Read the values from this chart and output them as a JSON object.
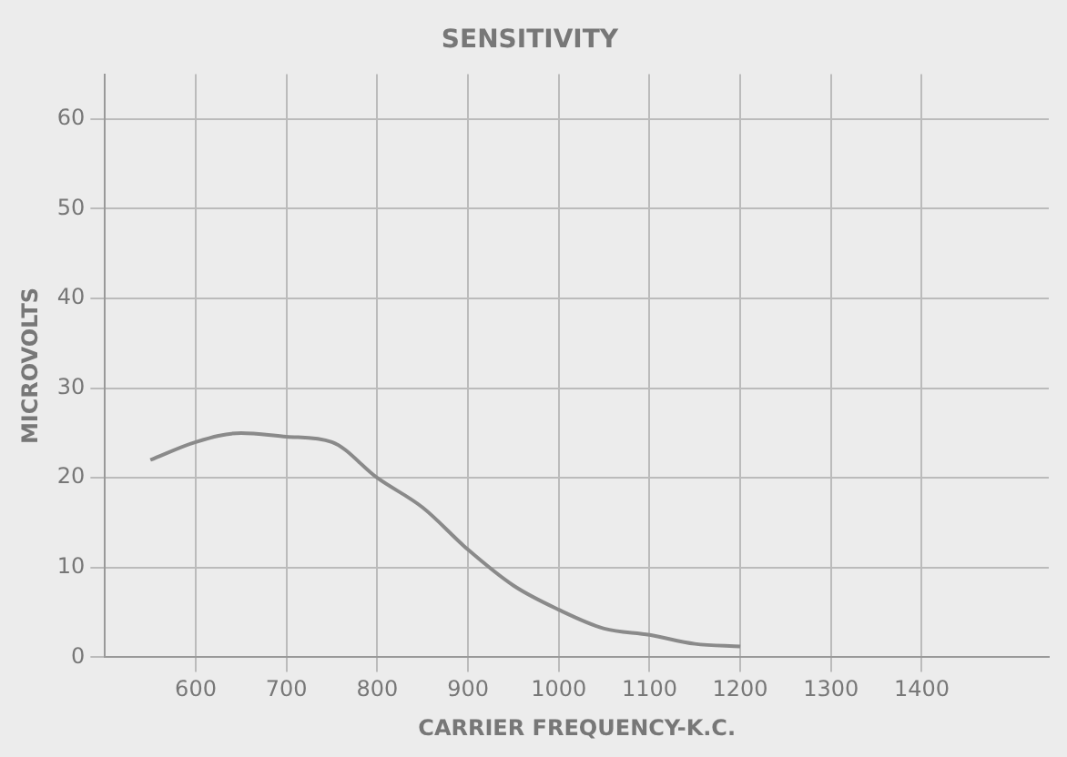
{
  "chart_data": {
    "type": "line",
    "title": "SENSITIVITY",
    "xlabel": "CARRIER FREQUENCY-K.C.",
    "ylabel": "MICROVOLTS",
    "x": [
      550,
      600,
      650,
      700,
      750,
      800,
      850,
      900,
      950,
      1000,
      1050,
      1100,
      1150,
      1200
    ],
    "series": [
      {
        "color": "#8a8a8a",
        "values": [
          22,
          24,
          25,
          24.6,
          24,
          20,
          16.7,
          12,
          8,
          5.3,
          3.2,
          2.5,
          1.5,
          1.2
        ]
      }
    ],
    "xlim": [
      500,
      1540
    ],
    "xticks": [
      600,
      700,
      800,
      900,
      1000,
      1100,
      1200,
      1300,
      1400
    ],
    "ylim": [
      0,
      65
    ],
    "yticks": [
      0,
      10,
      20,
      30,
      40,
      50,
      60
    ],
    "grid": true,
    "legend": false,
    "marker": "none",
    "line_style": "solid"
  }
}
